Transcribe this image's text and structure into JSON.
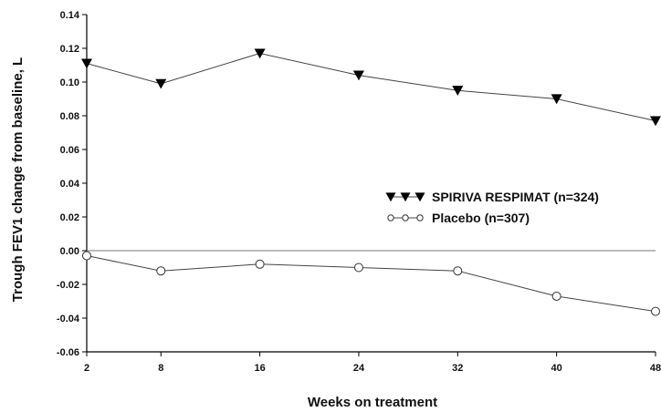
{
  "chart_data": {
    "type": "line",
    "xlabel": "Weeks on treatment",
    "ylabel": "Trough FEV1 change from baseline, L",
    "x": [
      2,
      8,
      16,
      24,
      32,
      40,
      48
    ],
    "xticks": [
      "2",
      "8",
      "16",
      "24",
      "32",
      "40",
      "48"
    ],
    "yticks": [
      "0.14",
      "0.12",
      "0.10",
      "0.08",
      "0.06",
      "0.04",
      "0.02",
      "0.00",
      "-0.02",
      "-0.04",
      "-0.06"
    ],
    "ylim": [
      -0.06,
      0.14
    ],
    "reference_line": 0,
    "grid": false,
    "legend_position": "right",
    "series": [
      {
        "name": "SPIRIVA RESPIMAT (n=324)",
        "marker": "filled-down-triangle",
        "values": [
          0.111,
          0.099,
          0.117,
          0.104,
          0.095,
          0.09,
          0.077
        ]
      },
      {
        "name": "Placebo (n=307)",
        "marker": "open-circle",
        "values": [
          -0.003,
          -0.012,
          -0.008,
          -0.01,
          -0.012,
          -0.027,
          -0.036
        ]
      }
    ],
    "colors": {
      "line": "#444444",
      "marker": "#000000",
      "reference": "#777777"
    }
  }
}
